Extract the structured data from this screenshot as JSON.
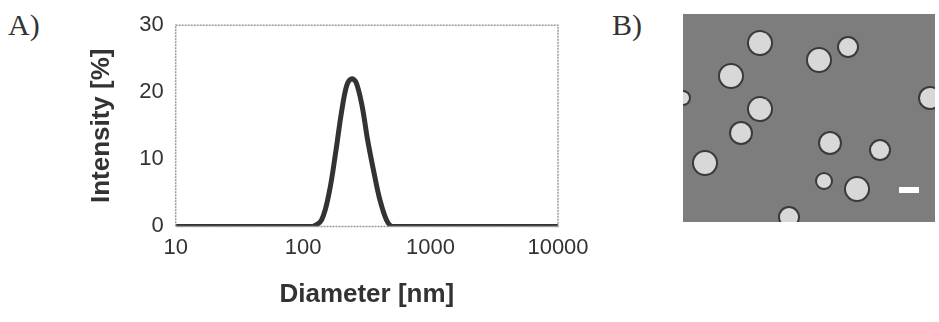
{
  "chart_data": {
    "type": "line",
    "panel_label": "A)",
    "x_label": "Diameter [nm]",
    "y_label": "Intensity [%]",
    "x": [
      10,
      100,
      120,
      140,
      160,
      180,
      200,
      220,
      240,
      260,
      290,
      320,
      360,
      400,
      450,
      500,
      1000,
      10000
    ],
    "values": [
      0,
      0,
      0,
      1,
      5,
      11,
      17,
      21,
      22,
      21.5,
      18,
      13,
      8,
      4,
      1,
      0,
      0,
      0
    ],
    "color": "#333333",
    "log": "x",
    "xlim": [
      10,
      10000
    ],
    "xticks": [
      10,
      100,
      1000,
      10000
    ],
    "ylim": [
      0,
      30
    ],
    "yticks": [
      0,
      10,
      20,
      30
    ],
    "grid": false
  },
  "image": {
    "panel_label": "B)"
  }
}
